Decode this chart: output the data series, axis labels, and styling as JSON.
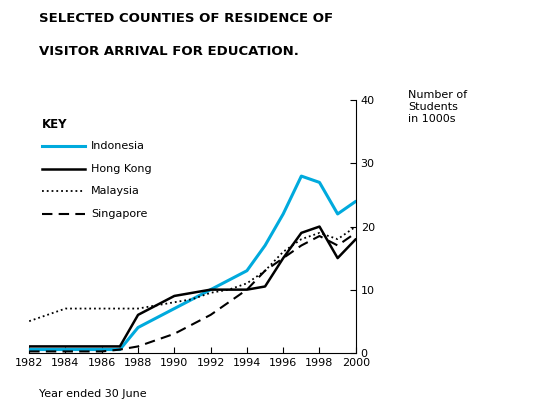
{
  "title_line1": "SELECTED COUNTIES OF RESIDENCE OF",
  "title_line2": "VISITOR ARRIVAL FOR EDUCATION.",
  "ylabel": "Number of\nStudents\nin 1000s",
  "xlabel": "Year ended 30 June",
  "ylim": [
    0,
    40
  ],
  "years": [
    1982,
    1983,
    1984,
    1985,
    1986,
    1987,
    1988,
    1989,
    1990,
    1991,
    1992,
    1993,
    1994,
    1995,
    1996,
    1997,
    1998,
    1999,
    2000
  ],
  "indonesia": [
    0.5,
    0.5,
    0.5,
    0.5,
    0.5,
    0.5,
    4,
    5.5,
    7,
    8.5,
    10,
    11.5,
    13,
    17,
    22,
    28,
    27,
    22,
    24
  ],
  "hong_kong": [
    1,
    1,
    1,
    1,
    1,
    1,
    6,
    7.5,
    9,
    9.5,
    10,
    10,
    10,
    10.5,
    15,
    19,
    20,
    15,
    18
  ],
  "malaysia": [
    5,
    6,
    7,
    7,
    7,
    7,
    7,
    7.5,
    8,
    8.5,
    9.5,
    10,
    11,
    13,
    16,
    18,
    19,
    18,
    20
  ],
  "singapore": [
    0.2,
    0.2,
    0.2,
    0.2,
    0.2,
    0.5,
    1,
    2,
    3,
    4.5,
    6,
    8,
    10,
    13,
    15,
    17,
    18.5,
    17,
    19
  ],
  "indonesia_color": "#00aadd",
  "hong_kong_color": "#000000",
  "malaysia_color": "#000000",
  "singapore_color": "#000000",
  "background_color": "#ffffff",
  "yticks": [
    0,
    10,
    20,
    30,
    40
  ],
  "xticks": [
    1982,
    1984,
    1986,
    1988,
    1990,
    1992,
    1994,
    1996,
    1998,
    2000
  ]
}
